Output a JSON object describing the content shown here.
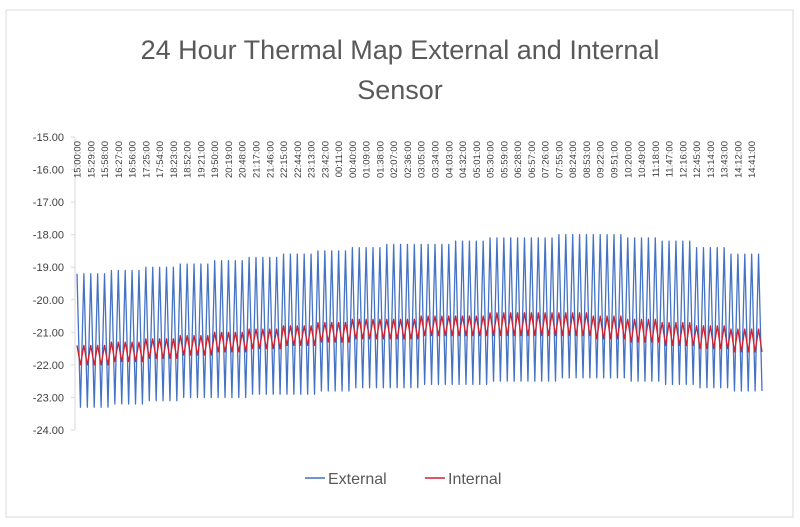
{
  "chart_data": {
    "type": "line",
    "title": "24 Hour Thermal Map External and Internal Sensor",
    "categories": [
      "15:00:00",
      null,
      null,
      null,
      "15:29:00",
      null,
      null,
      null,
      "15:58:00",
      null,
      null,
      null,
      "16:27:00",
      null,
      null,
      null,
      "16:56:00",
      null,
      null,
      null,
      "17:25:00",
      null,
      null,
      null,
      "17:54:00",
      null,
      null,
      null,
      "18:23:00",
      null,
      null,
      null,
      "18:52:00",
      null,
      null,
      null,
      "19:21:00",
      null,
      null,
      null,
      "19:50:00",
      null,
      null,
      null,
      "20:19:00",
      null,
      null,
      null,
      "20:48:00",
      null,
      null,
      null,
      "21:17:00",
      null,
      null,
      null,
      "21:46:00",
      null,
      null,
      null,
      "22:15:00",
      null,
      null,
      null,
      "22:44:00",
      null,
      null,
      null,
      "23:13:00",
      null,
      null,
      null,
      "23:42:00",
      null,
      null,
      null,
      "00:11:00",
      null,
      null,
      null,
      "00:40:00",
      null,
      null,
      null,
      "01:09:00",
      null,
      null,
      null,
      "01:38:00",
      null,
      null,
      null,
      "02:07:00",
      null,
      null,
      null,
      "02:36:00",
      null,
      null,
      null,
      "03:05:00",
      null,
      null,
      null,
      "03:34:00",
      null,
      null,
      null,
      "04:03:00",
      null,
      null,
      null,
      "04:32:00",
      null,
      null,
      null,
      "05:01:00",
      null,
      null,
      null,
      "05:30:00",
      null,
      null,
      null,
      "05:59:00",
      null,
      null,
      null,
      "06:28:00",
      null,
      null,
      null,
      "06:57:00",
      null,
      null,
      null,
      "07:26:00",
      null,
      null,
      null,
      "07:55:00",
      null,
      null,
      null,
      "08:24:00",
      null,
      null,
      null,
      "08:53:00",
      null,
      null,
      null,
      "09:22:00",
      null,
      null,
      null,
      "09:51:00",
      null,
      null,
      null,
      "10:20:00",
      null,
      null,
      null,
      "10:49:00",
      null,
      null,
      null,
      "11:18:00",
      null,
      null,
      null,
      "11:47:00",
      null,
      null,
      null,
      "12:16:00",
      null,
      null,
      null,
      "12:45:00",
      null,
      null,
      null,
      "13:14:00",
      null,
      null,
      null,
      "13:43:00",
      null,
      null,
      null,
      "14:12:00",
      null,
      null,
      null,
      "14:41:00",
      null,
      null,
      null
    ],
    "series": [
      {
        "name": "External",
        "color": "#4472c4",
        "values": [
          -19.2,
          -23.3,
          -19.2,
          -23.3,
          -19.2,
          -23.3,
          -19.2,
          -23.3,
          -19.2,
          -23.3,
          -19.1,
          -23.2,
          -19.1,
          -23.2,
          -19.1,
          -23.2,
          -19.1,
          -23.2,
          -19.1,
          -23.2,
          -19.0,
          -23.1,
          -19.0,
          -23.1,
          -19.0,
          -23.1,
          -19.0,
          -23.1,
          -19.0,
          -23.1,
          -18.9,
          -23.0,
          -18.9,
          -23.0,
          -18.9,
          -23.0,
          -18.9,
          -23.0,
          -18.9,
          -23.0,
          -18.8,
          -23.0,
          -18.8,
          -23.0,
          -18.8,
          -23.0,
          -18.8,
          -23.0,
          -18.8,
          -23.0,
          -18.7,
          -22.9,
          -18.7,
          -22.9,
          -18.7,
          -22.9,
          -18.7,
          -22.9,
          -18.7,
          -22.9,
          -18.6,
          -22.9,
          -18.6,
          -22.9,
          -18.6,
          -22.9,
          -18.6,
          -22.9,
          -18.6,
          -22.9,
          -18.5,
          -22.8,
          -18.5,
          -22.8,
          -18.5,
          -22.8,
          -18.5,
          -22.8,
          -18.5,
          -22.8,
          -18.4,
          -22.7,
          -18.4,
          -22.7,
          -18.4,
          -22.7,
          -18.4,
          -22.7,
          -18.4,
          -22.7,
          -18.3,
          -22.7,
          -18.3,
          -22.7,
          -18.3,
          -22.7,
          -18.3,
          -22.7,
          -18.3,
          -22.7,
          -18.3,
          -22.6,
          -18.3,
          -22.6,
          -18.3,
          -22.6,
          -18.3,
          -22.6,
          -18.3,
          -22.6,
          -18.2,
          -22.6,
          -18.2,
          -22.6,
          -18.2,
          -22.6,
          -18.2,
          -22.6,
          -18.2,
          -22.6,
          -18.1,
          -22.5,
          -18.1,
          -22.5,
          -18.1,
          -22.5,
          -18.1,
          -22.5,
          -18.1,
          -22.5,
          -18.1,
          -22.5,
          -18.1,
          -22.5,
          -18.1,
          -22.5,
          -18.1,
          -22.5,
          -18.1,
          -22.5,
          -18.0,
          -22.4,
          -18.0,
          -22.4,
          -18.0,
          -22.4,
          -18.0,
          -22.4,
          -18.0,
          -22.4,
          -18.0,
          -22.4,
          -18.0,
          -22.4,
          -18.0,
          -22.4,
          -18.0,
          -22.4,
          -18.0,
          -22.4,
          -18.1,
          -22.5,
          -18.1,
          -22.5,
          -18.1,
          -22.5,
          -18.1,
          -22.5,
          -18.1,
          -22.5,
          -18.2,
          -22.6,
          -18.2,
          -22.6,
          -18.2,
          -22.6,
          -18.2,
          -22.6,
          -18.2,
          -22.6,
          -18.4,
          -22.7,
          -18.4,
          -22.7,
          -18.4,
          -22.7,
          -18.4,
          -22.7,
          -18.4,
          -22.7,
          -18.6,
          -22.8,
          -18.6,
          -22.8,
          -18.6,
          -22.8,
          -18.6,
          -22.8,
          -18.6,
          -22.8
        ]
      },
      {
        "name": "Internal",
        "color": "#d0202e",
        "values": [
          -21.4,
          -22.0,
          -21.4,
          -22.0,
          -21.4,
          -22.0,
          -21.4,
          -22.0,
          -21.4,
          -22.0,
          -21.3,
          -21.9,
          -21.3,
          -21.9,
          -21.3,
          -21.9,
          -21.3,
          -21.9,
          -21.3,
          -21.9,
          -21.2,
          -21.8,
          -21.2,
          -21.8,
          -21.2,
          -21.8,
          -21.2,
          -21.8,
          -21.2,
          -21.8,
          -21.1,
          -21.7,
          -21.1,
          -21.7,
          -21.1,
          -21.7,
          -21.1,
          -21.7,
          -21.1,
          -21.7,
          -21.0,
          -21.6,
          -21.0,
          -21.6,
          -21.0,
          -21.6,
          -21.0,
          -21.6,
          -21.0,
          -21.6,
          -20.9,
          -21.5,
          -20.9,
          -21.5,
          -20.9,
          -21.5,
          -20.9,
          -21.5,
          -20.9,
          -21.5,
          -20.8,
          -21.4,
          -20.8,
          -21.4,
          -20.8,
          -21.4,
          -20.8,
          -21.4,
          -20.8,
          -21.4,
          -20.7,
          -21.3,
          -20.7,
          -21.3,
          -20.7,
          -21.3,
          -20.7,
          -21.3,
          -20.7,
          -21.3,
          -20.6,
          -21.2,
          -20.6,
          -21.2,
          -20.6,
          -21.2,
          -20.6,
          -21.2,
          -20.6,
          -21.2,
          -20.6,
          -21.2,
          -20.6,
          -21.2,
          -20.6,
          -21.2,
          -20.6,
          -21.2,
          -20.6,
          -21.2,
          -20.5,
          -21.1,
          -20.5,
          -21.1,
          -20.5,
          -21.1,
          -20.5,
          -21.1,
          -20.5,
          -21.1,
          -20.5,
          -21.1,
          -20.5,
          -21.1,
          -20.5,
          -21.1,
          -20.5,
          -21.1,
          -20.5,
          -21.1,
          -20.4,
          -21.1,
          -20.4,
          -21.1,
          -20.4,
          -21.1,
          -20.4,
          -21.1,
          -20.4,
          -21.1,
          -20.4,
          -21.1,
          -20.4,
          -21.1,
          -20.4,
          -21.1,
          -20.4,
          -21.1,
          -20.4,
          -21.1,
          -20.4,
          -21.1,
          -20.4,
          -21.1,
          -20.4,
          -21.1,
          -20.4,
          -21.1,
          -20.4,
          -21.1,
          -20.5,
          -21.2,
          -20.5,
          -21.2,
          -20.5,
          -21.2,
          -20.5,
          -21.2,
          -20.5,
          -21.2,
          -20.6,
          -21.3,
          -20.6,
          -21.3,
          -20.6,
          -21.3,
          -20.6,
          -21.3,
          -20.6,
          -21.3,
          -20.7,
          -21.4,
          -20.7,
          -21.4,
          -20.7,
          -21.4,
          -20.7,
          -21.4,
          -20.7,
          -21.4,
          -20.8,
          -21.5,
          -20.8,
          -21.5,
          -20.8,
          -21.5,
          -20.8,
          -21.5,
          -20.8,
          -21.5,
          -20.9,
          -21.6,
          -20.9,
          -21.6,
          -20.9,
          -21.6,
          -20.9,
          -21.6,
          -20.9,
          -21.6
        ]
      }
    ],
    "ylim": [
      -24,
      -15
    ],
    "yticks": [
      {
        "value": -15,
        "label": "-15.00"
      },
      {
        "value": -16,
        "label": "-16.00"
      },
      {
        "value": -17,
        "label": "-17.00"
      },
      {
        "value": -18,
        "label": "-18.00"
      },
      {
        "value": -19,
        "label": "-19.00"
      },
      {
        "value": -20,
        "label": "-20.00"
      },
      {
        "value": -21,
        "label": "-21.00"
      },
      {
        "value": -22,
        "label": "-22.00"
      },
      {
        "value": -23,
        "label": "-23.00"
      },
      {
        "value": -24,
        "label": "-24.00"
      }
    ],
    "grid": false,
    "legend": "bottom"
  }
}
